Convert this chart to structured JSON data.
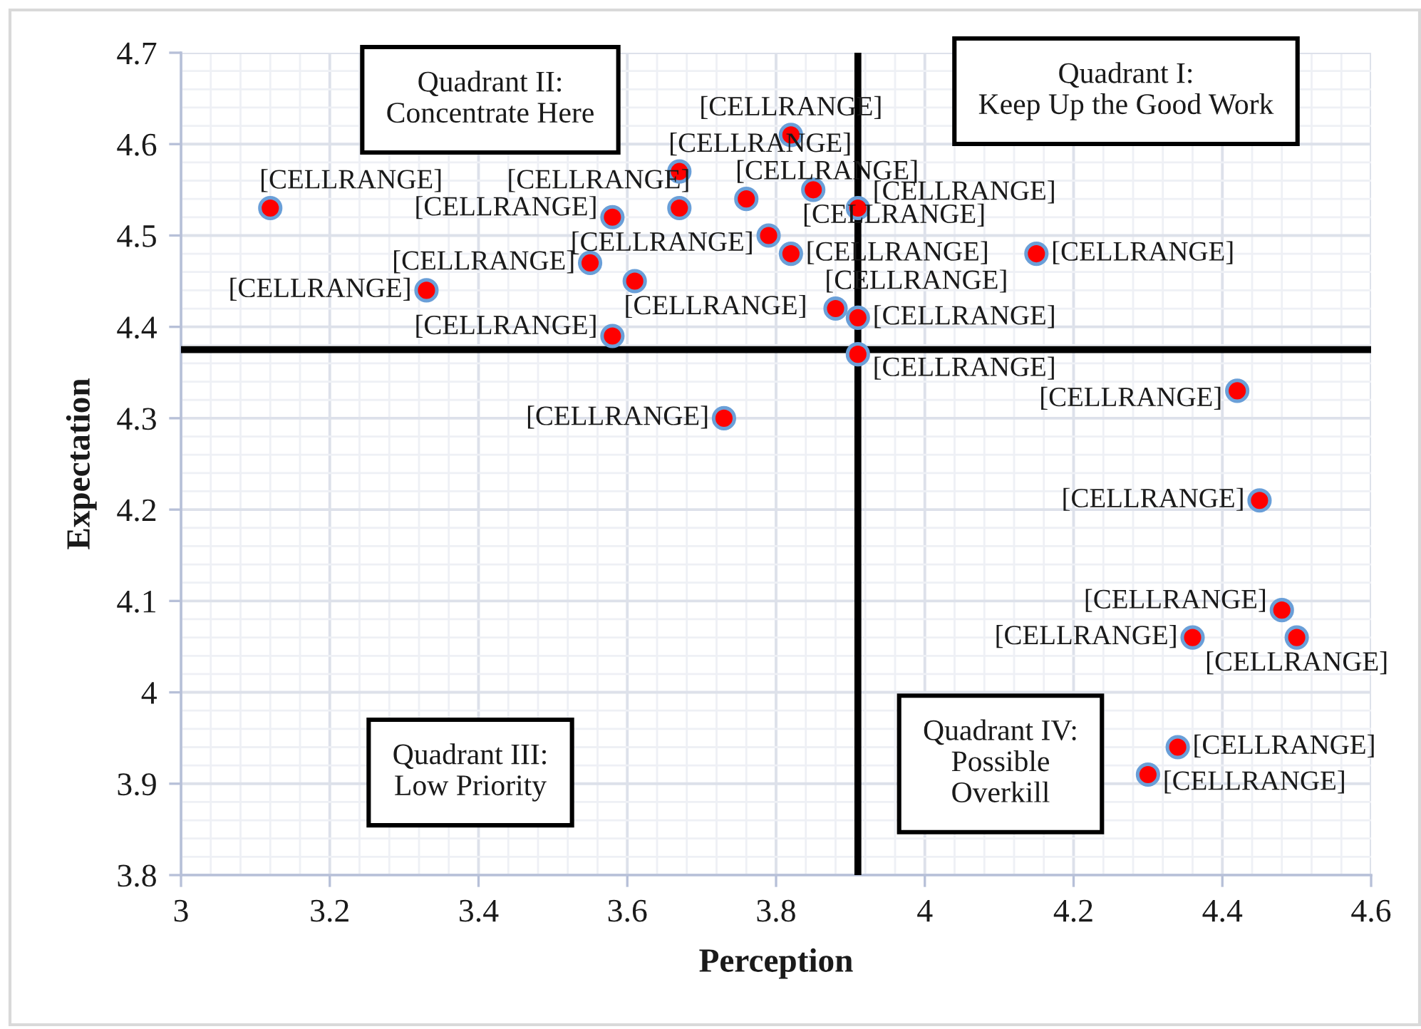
{
  "chart_data": {
    "type": "scatter",
    "xlabel": "Perception",
    "ylabel": "Expectation",
    "x": [
      3.12,
      3.33,
      3.55,
      3.58,
      3.58,
      3.61,
      3.67,
      3.67,
      3.73,
      3.76,
      3.79,
      3.82,
      3.82,
      3.85,
      3.88,
      3.91,
      3.91,
      3.91,
      4.15,
      4.3,
      4.34,
      4.36,
      4.42,
      4.45,
      4.48,
      4.5
    ],
    "series": [
      {
        "color": "#ff0000",
        "values": [
          4.53,
          4.44,
          4.47,
          4.52,
          4.39,
          4.45,
          4.57,
          4.53,
          4.3,
          4.54,
          4.5,
          4.61,
          4.48,
          4.55,
          4.42,
          4.53,
          4.41,
          4.37,
          4.48,
          3.91,
          3.94,
          4.06,
          4.33,
          4.21,
          4.09,
          4.06
        ],
        "value_labels": [
          "[CELLRANGE]",
          "[CELLRANGE]",
          "[CELLRANGE]",
          "[CELLRANGE]",
          "[CELLRANGE]",
          "[CELLRANGE]",
          "[CELLRANGE]",
          "[CELLRANGE]",
          "[CELLRANGE]",
          "[CELLRANGE]",
          "[CELLRANGE]",
          "[CELLRANGE]",
          "[CELLRANGE]",
          "[CELLRANGE]",
          "[CELLRANGE]",
          "[CELLRANGE]",
          "[CELLRANGE]",
          "[CELLRANGE]",
          "[CELLRANGE]",
          "[CELLRANGE]",
          "[CELLRANGE]",
          "[CELLRANGE]",
          "[CELLRANGE]",
          "[CELLRANGE]",
          "[CELLRANGE]",
          "[CELLRANGE]"
        ]
      }
    ],
    "xlim": [
      3,
      4.6
    ],
    "xticks": [
      3,
      3.2,
      3.4,
      3.6,
      3.8,
      4,
      4.2,
      4.4,
      4.6
    ],
    "ylim": [
      3.8,
      4.7
    ],
    "yticks": [
      3.8,
      3.9,
      4,
      4.1,
      4.2,
      4.3,
      4.4,
      4.5,
      4.6,
      4.7
    ],
    "ref_lines": [
      {
        "axis": "x",
        "value": 3.91,
        "color": "#000000"
      },
      {
        "axis": "y",
        "value": 4.375,
        "color": "#000000"
      }
    ],
    "annotations": [
      "Quadrant II:\nConcentrate Here",
      "Quadrant I:\nKeep Up the Good Work",
      "Quadrant III:\nLow Priority",
      "Quadrant IV:\nPossible\nOverkill"
    ],
    "grid": true,
    "marker": "circle"
  }
}
